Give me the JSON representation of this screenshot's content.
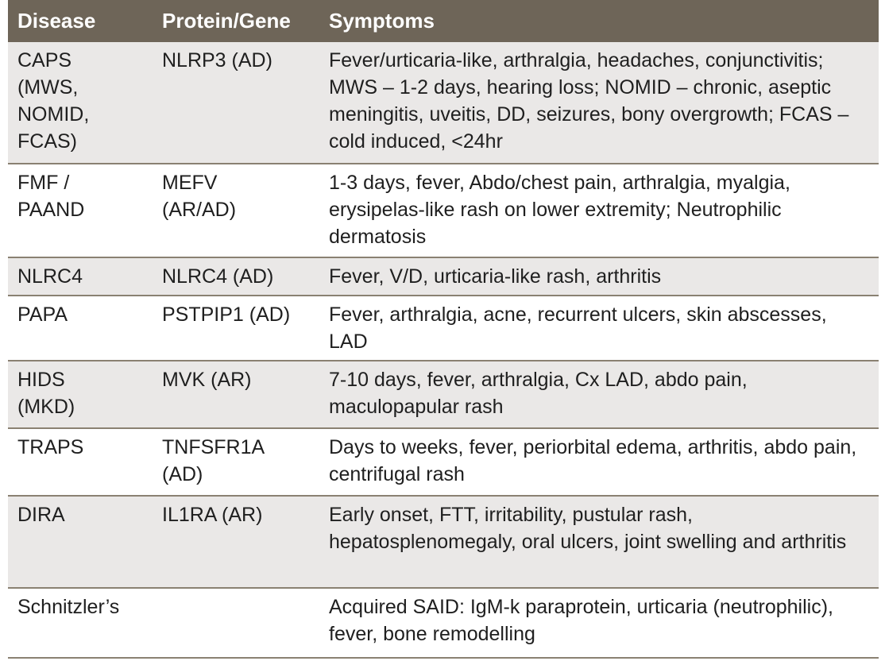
{
  "headers": {
    "disease": "Disease",
    "gene": "Protein/Gene",
    "symptoms": "Symptoms"
  },
  "rows": [
    {
      "disease": "CAPS\n(MWS,\nNOMID,\nFCAS)",
      "gene": "NLRP3 (AD)",
      "symptoms": "Fever/urticaria-like, arthralgia, headaches, conjunctivitis; MWS – 1-2 days, hearing loss; NOMID – chronic, aseptic meningitis, uveitis, DD, seizures, bony overgrowth; FCAS – cold induced, <24hr"
    },
    {
      "disease": "FMF /\nPAAND",
      "gene": "MEFV\n(AR/AD)",
      "symptoms": "1-3 days, fever, Abdo/chest pain, arthralgia, myalgia, erysipelas-like rash on lower extremity; Neutrophilic dermatosis"
    },
    {
      "disease": "NLRC4",
      "gene": "NLRC4 (AD)",
      "symptoms": "Fever, V/D, urticaria-like rash, arthritis"
    },
    {
      "disease": "PAPA",
      "gene": "PSTPIP1 (AD)",
      "symptoms": "Fever, arthralgia, acne, recurrent ulcers, skin abscesses, LAD"
    },
    {
      "disease": "HIDS\n(MKD)",
      "gene": "MVK (AR)",
      "symptoms": "7-10 days, fever, arthralgia, Cx LAD, abdo pain, maculopapular rash"
    },
    {
      "disease": "TRAPS",
      "gene": "TNFSFR1A\n(AD)",
      "symptoms": "Days to weeks, fever, periorbital edema, arthritis, abdo pain, centrifugal rash"
    },
    {
      "disease": "DIRA",
      "gene": "IL1RA (AR)",
      "symptoms": "Early onset, FTT, irritability, pustular rash, hepatosplenomegaly, oral ulcers, joint swelling and arthritis"
    },
    {
      "disease": "Schnitzler’s",
      "gene": "",
      "symptoms": "Acquired SAID: IgM-k paraprotein, urticaria (neutrophilic), fever, bone remodelling"
    }
  ],
  "colors": {
    "header_bg": "#6e6558",
    "row_alt_bg": "#eae8e7",
    "row_bg": "#ffffff",
    "rule": "#8a8172"
  }
}
